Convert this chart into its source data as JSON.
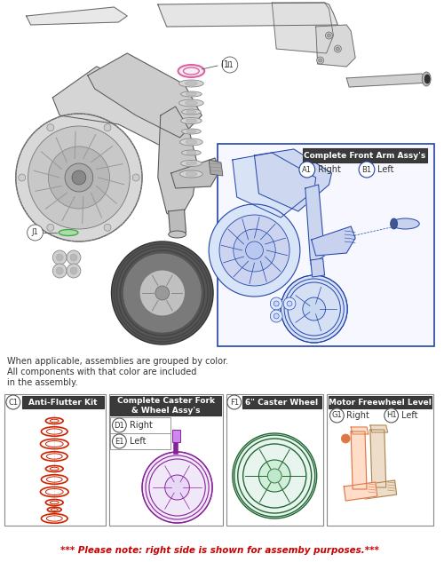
{
  "bg_color": "#ffffff",
  "title_note": "*** Please note: right side is shown for assemby purposes.***",
  "title_note_color": "#cc0000",
  "assembly_note_line1": "When applicable, assemblies are grouped by color.",
  "assembly_note_line2": "All components with that color are included",
  "assembly_note_line3": "in the assembly.",
  "complete_front_arm_title": "Complete Front Arm Assy's",
  "complete_front_arm_items": [
    [
      "A1",
      "Right"
    ],
    [
      "B1",
      "Left"
    ]
  ],
  "anti_flutter_label": "Anti-Flutter Kit",
  "anti_flutter_code": "C1",
  "caster_fork_label": "Complete Caster Fork\n& Wheel Assy's",
  "caster_fork_items": [
    [
      "D1",
      "Right"
    ],
    [
      "E1",
      "Left"
    ]
  ],
  "caster_wheel_label": "6\" Caster Wheel",
  "caster_wheel_code": "F1",
  "motor_freewheel_label": "Motor Freewheel Level",
  "motor_freewheel_items": [
    [
      "G1",
      "Right"
    ],
    [
      "H1",
      "Left"
    ]
  ],
  "label_I1": "I1",
  "label_J1": "J1",
  "box_border_color": "#888888",
  "blue_color": "#2244aa",
  "red_color": "#cc2200",
  "purple_color": "#882299",
  "green_color": "#226633",
  "orange_color": "#dd7744",
  "tan_color": "#aa8855",
  "line_color": "#555555",
  "frame_color": "#666666",
  "pink_color": "#e060a0"
}
